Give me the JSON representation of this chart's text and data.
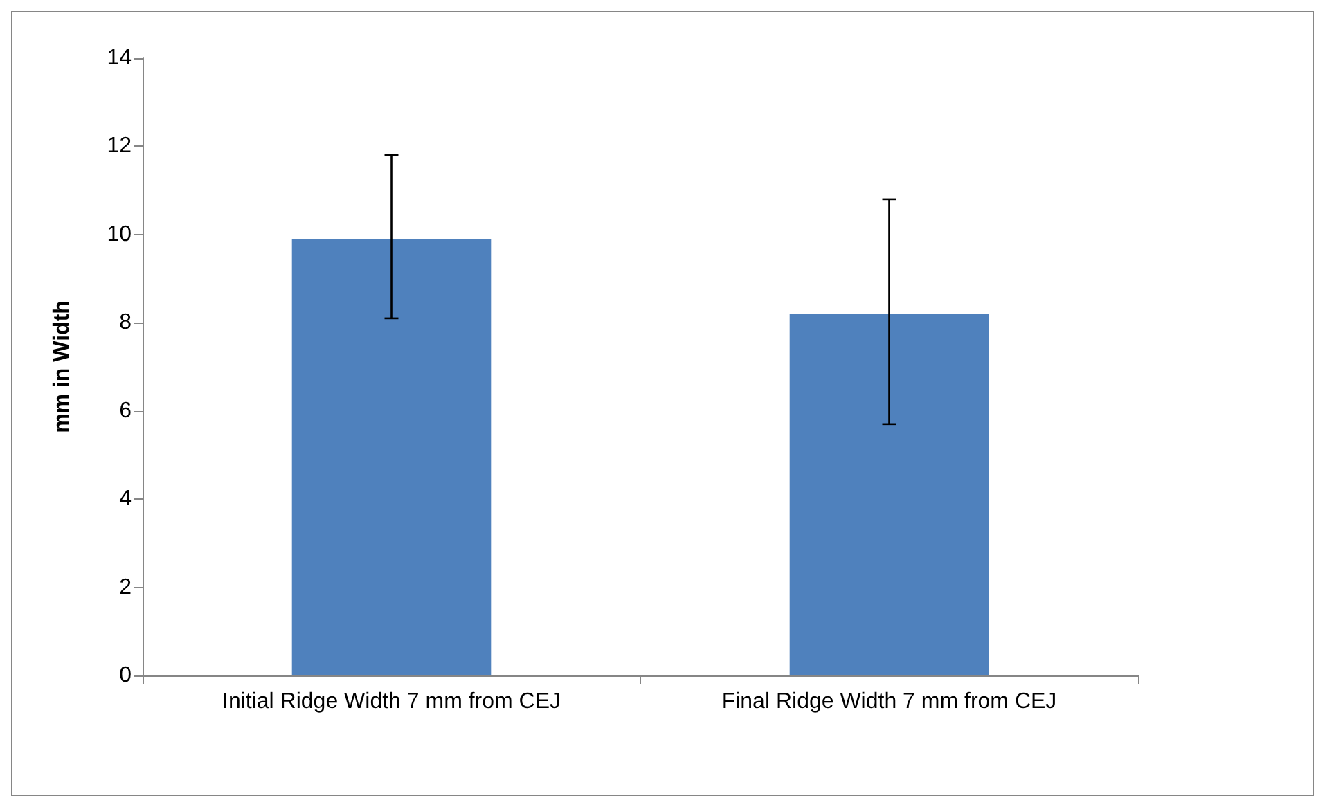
{
  "chart_data": {
    "type": "bar",
    "ylabel": "mm in Width",
    "categories": [
      "Initial Ridge Width 7 mm from CEJ",
      "Final Ridge Width 7 mm from CEJ"
    ],
    "values": [
      9.9,
      8.2
    ],
    "color": "#4f81bd",
    "errors": [
      [
        8.1,
        11.8
      ],
      [
        5.7,
        10.8
      ]
    ],
    "ylim": [
      0,
      14
    ],
    "yticks": [
      0,
      2,
      4,
      6,
      8,
      10,
      12,
      14
    ],
    "grid": false
  }
}
